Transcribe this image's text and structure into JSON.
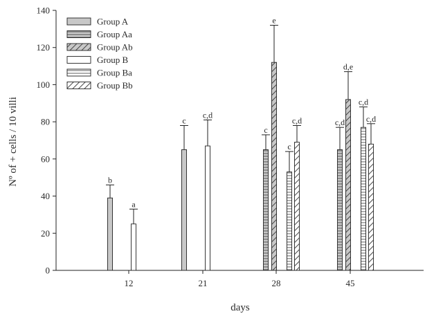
{
  "chart_data": {
    "type": "bar",
    "xlabel": "days",
    "ylabel": "Nº of + cells / 10 villi",
    "ylim": [
      0,
      140
    ],
    "yticks": [
      0,
      20,
      40,
      60,
      80,
      100,
      120,
      140
    ],
    "categories": [
      "12",
      "21",
      "28",
      "45"
    ],
    "grid": false,
    "legend_position": "top-left",
    "error_bars": "upper only",
    "series": [
      {
        "name": "Group A",
        "pattern": "solid-gray",
        "fill": "#c8c8c8",
        "values": [
          39,
          65,
          null,
          null
        ],
        "errors": [
          7,
          13,
          null,
          null
        ],
        "labels": [
          "b",
          "c",
          null,
          null
        ]
      },
      {
        "name": "Group Aa",
        "pattern": "horizontal-lines-gray",
        "fill": "#c8c8c8",
        "values": [
          null,
          null,
          65,
          65
        ],
        "errors": [
          null,
          null,
          8,
          12
        ],
        "labels": [
          null,
          null,
          "c",
          "c,d"
        ]
      },
      {
        "name": "Group Ab",
        "pattern": "diagonal-lines-gray",
        "fill": "#c8c8c8",
        "values": [
          null,
          null,
          112,
          92
        ],
        "errors": [
          null,
          null,
          20,
          15
        ],
        "labels": [
          null,
          null,
          "e",
          "d,e"
        ]
      },
      {
        "name": "Group B",
        "pattern": "solid-white",
        "fill": "#ffffff",
        "values": [
          25,
          67,
          null,
          null
        ],
        "errors": [
          8,
          14,
          null,
          null
        ],
        "labels": [
          "a",
          "c,d",
          null,
          null
        ]
      },
      {
        "name": "Group Ba",
        "pattern": "horizontal-lines-white",
        "fill": "#ffffff",
        "values": [
          null,
          null,
          53,
          77
        ],
        "errors": [
          null,
          null,
          11,
          11
        ],
        "labels": [
          null,
          null,
          "c",
          "c,d"
        ]
      },
      {
        "name": "Group Bb",
        "pattern": "diagonal-lines-white",
        "fill": "#ffffff",
        "values": [
          null,
          null,
          69,
          68
        ],
        "errors": [
          null,
          null,
          9,
          11
        ],
        "labels": [
          null,
          null,
          "c,d",
          "c,d"
        ]
      }
    ]
  }
}
